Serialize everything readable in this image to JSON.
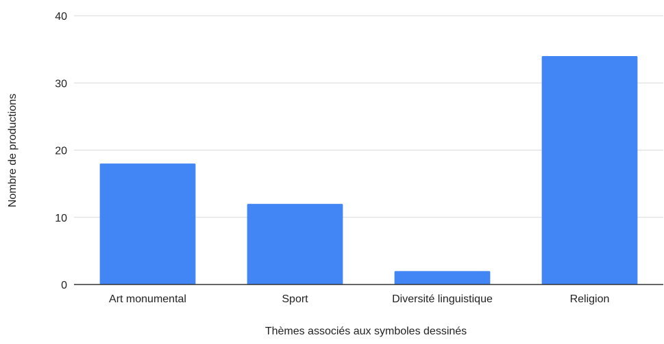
{
  "chart_data": {
    "type": "bar",
    "title": "",
    "xlabel": "Thèmes associés aux symboles dessinés",
    "ylabel": "Nombre de productions",
    "categories": [
      "Art monumental",
      "Sport",
      "Diversité linguistique",
      "Religion"
    ],
    "values": [
      18,
      12,
      2,
      34
    ],
    "ylim": [
      0,
      40
    ],
    "yticks": [
      0,
      10,
      20,
      30,
      40
    ],
    "grid": true,
    "legend": "none",
    "colors": {
      "bar": "#4285F4",
      "grid": "#d9d9d9",
      "axis": "#333333"
    }
  }
}
